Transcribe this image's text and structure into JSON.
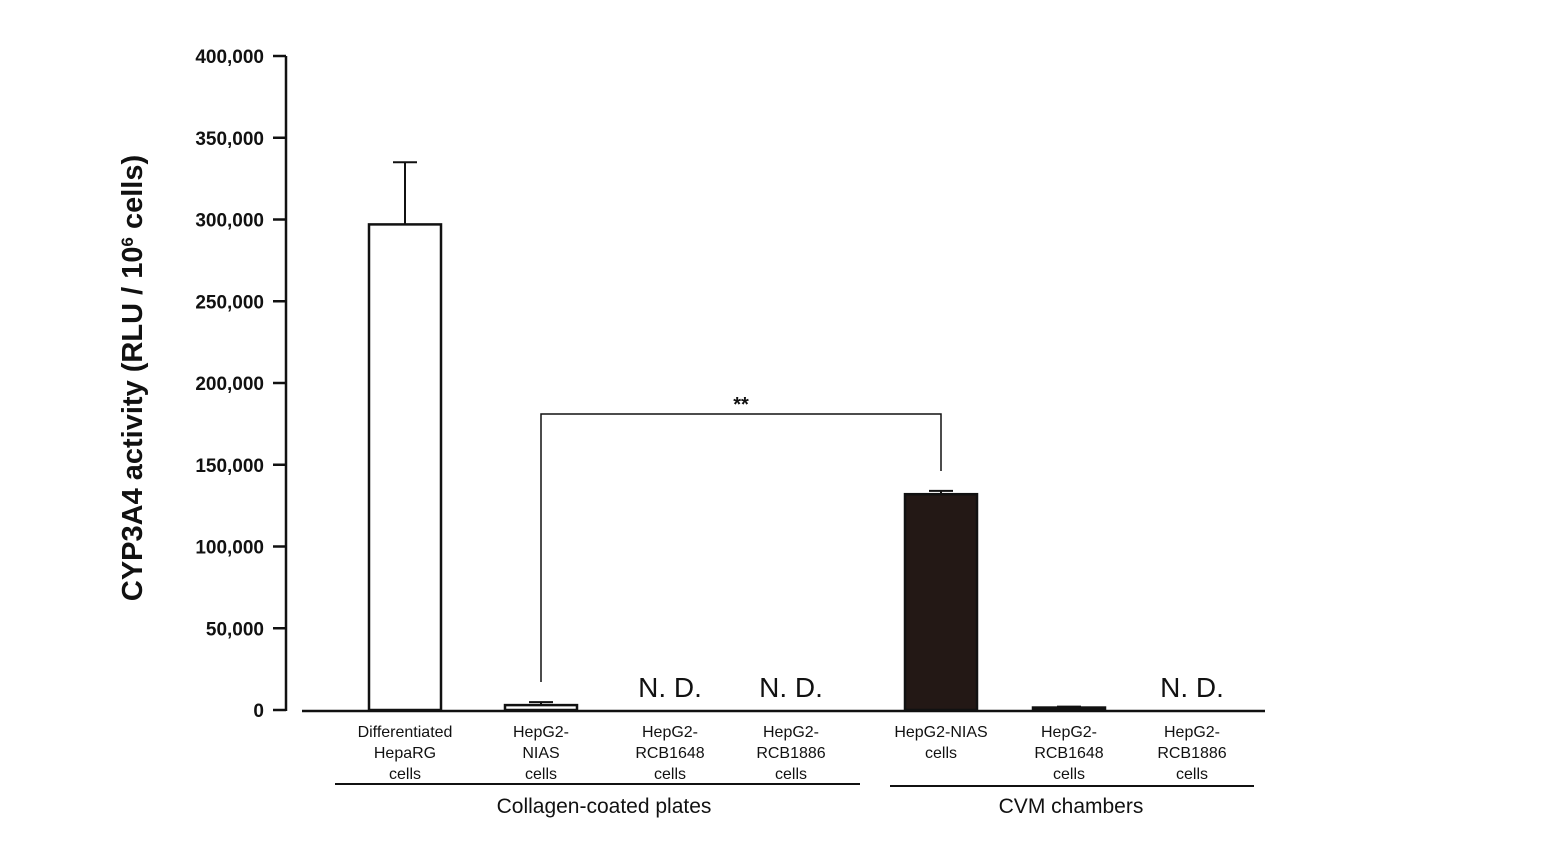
{
  "chart_data": {
    "type": "bar",
    "ylabel": {
      "main": "CYP3A4  activity  (RLU / 10",
      "superscript": "6",
      "end": " cells)"
    },
    "ylim": [
      0,
      400000
    ],
    "yticks": [
      "0",
      "50,000",
      "100,000",
      "150,000",
      "200,000",
      "250,000",
      "300,000",
      "350,000",
      "400,000"
    ],
    "grid": false,
    "colors": {
      "open_bar_fill": "#ffffff",
      "filled_bar_fill": "#231815",
      "stroke": "#111111"
    },
    "bars": [
      {
        "label_lines": [
          "Differentiated",
          "HepaRG",
          "cells"
        ],
        "value": 297000,
        "error": 38000,
        "fill": "open",
        "nd": ""
      },
      {
        "label_lines": [
          "HepG2-",
          "NIAS",
          "cells"
        ],
        "value": 3000,
        "error": 1800,
        "fill": "open",
        "nd": ""
      },
      {
        "label_lines": [
          "HepG2-",
          "RCB1648",
          "cells"
        ],
        "value": null,
        "error": null,
        "fill": "open",
        "nd": "N. D."
      },
      {
        "label_lines": [
          "HepG2-",
          "RCB1886",
          "cells"
        ],
        "value": null,
        "error": null,
        "fill": "open",
        "nd": "N. D."
      },
      {
        "label_lines": [
          "HepG2-NIAS",
          "cells"
        ],
        "value": 132000,
        "error": 2000,
        "fill": "filled",
        "nd": ""
      },
      {
        "label_lines": [
          "HepG2-",
          "RCB1648",
          "cells"
        ],
        "value": 1500,
        "error": 600,
        "fill": "filled",
        "nd": ""
      },
      {
        "label_lines": [
          "HepG2-",
          "RCB1886",
          "cells"
        ],
        "value": null,
        "error": null,
        "fill": "filled",
        "nd": "N. D."
      }
    ],
    "groups": [
      {
        "label": "Collagen-coated plates",
        "bars": [
          0,
          1,
          2,
          3
        ]
      },
      {
        "label": "CVM chambers",
        "bars": [
          4,
          5,
          6
        ]
      }
    ],
    "significance": {
      "from": 1,
      "to": 4,
      "label": "**"
    }
  }
}
